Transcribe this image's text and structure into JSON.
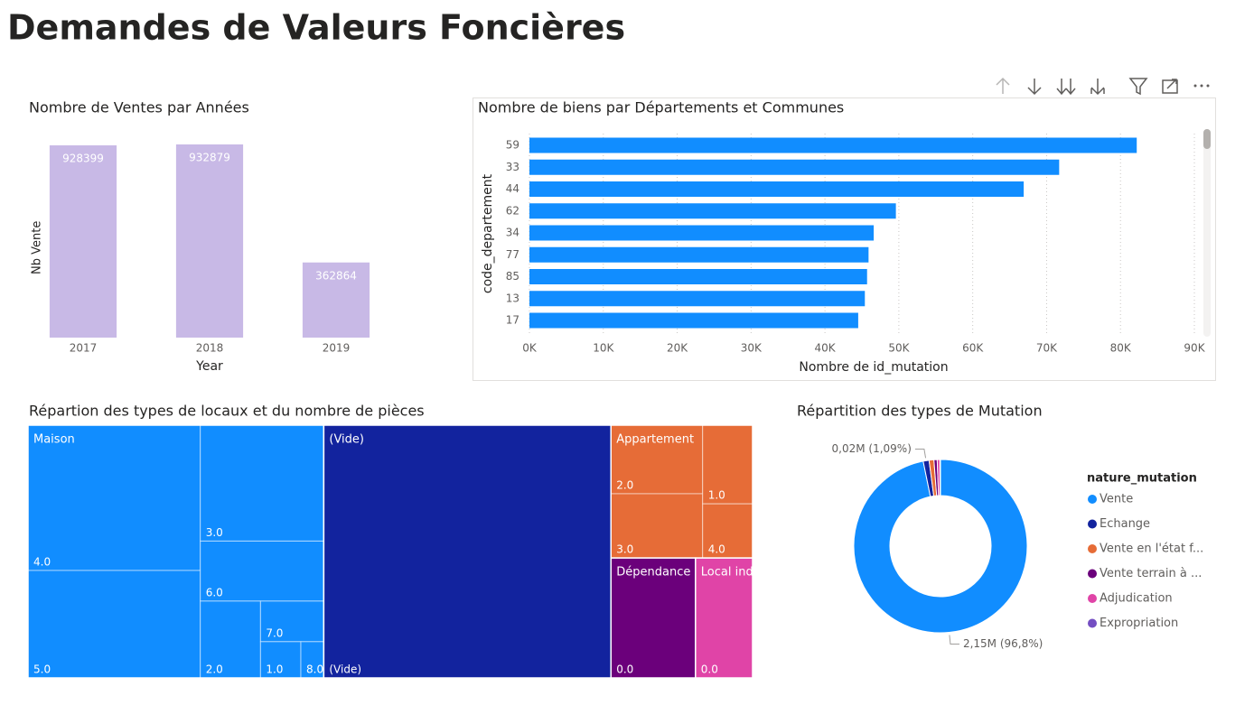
{
  "title": "Demandes de Valeurs Foncières",
  "chart_data": [
    {
      "type": "bar",
      "orientation": "vertical",
      "title": "Nombre de Ventes par Années",
      "categories": [
        "2017",
        "2018",
        "2019"
      ],
      "values": [
        928399,
        932879,
        362864
      ],
      "x_label": "Year",
      "y_label": "Nb Vente",
      "color": "#c8b9e6",
      "ylim": [
        0,
        1000000
      ],
      "data_labels": true
    },
    {
      "type": "bar",
      "orientation": "horizontal",
      "title": "Nombre de biens par Départements et Communes",
      "categories": [
        "59",
        "33",
        "44",
        "62",
        "34",
        "77",
        "85",
        "13",
        "17"
      ],
      "values": [
        82200,
        71700,
        66900,
        49600,
        46600,
        45900,
        45700,
        45400,
        44500
      ],
      "x_label": "Nombre de id_mutation",
      "y_label": "code_departement",
      "color": "#118dff",
      "xlim": [
        0,
        90000
      ],
      "xticks": [
        {
          "value": 0,
          "label": "0K"
        },
        {
          "value": 10000,
          "label": "10K"
        },
        {
          "value": 20000,
          "label": "20K"
        },
        {
          "value": 30000,
          "label": "30K"
        },
        {
          "value": 40000,
          "label": "40K"
        },
        {
          "value": 50000,
          "label": "50K"
        },
        {
          "value": 60000,
          "label": "60K"
        },
        {
          "value": 70000,
          "label": "70K"
        },
        {
          "value": 80000,
          "label": "80K"
        },
        {
          "value": 90000,
          "label": "90K"
        }
      ],
      "grid": true
    },
    {
      "type": "treemap",
      "title": "Répartion des types de locaux et du nombre de pièces",
      "series": [
        {
          "name": "Maison",
          "color": "#118dff",
          "categories": [
            "4.0",
            "5.0",
            "3.0",
            "6.0",
            "2.0",
            "7.0",
            "1.0",
            "8.0"
          ],
          "values": [
            304290,
            224910,
            173880,
            90100,
            56180,
            31200,
            17760,
            10080
          ]
        },
        {
          "name": "(Vide)",
          "color": "#12239e",
          "categories": [
            "(Vide)"
          ],
          "values": [
            882000
          ]
        },
        {
          "name": "Appartement",
          "color": "#e66c37",
          "categories": [
            "2.0",
            "3.0",
            "1.0",
            "4.0"
          ],
          "values": [
            76440,
            71540,
            47740,
            32860
          ]
        },
        {
          "name": "Dépendance",
          "color": "#6b007b",
          "categories": [
            "0.0"
          ],
          "values": [
            123200
          ]
        },
        {
          "name": "Local industriel. com...",
          "color": "#e044a7",
          "categories": [
            "0.0"
          ],
          "values": [
            83200
          ]
        }
      ]
    },
    {
      "type": "pie",
      "title": "Répartition des types de Mutation",
      "legend_title": "nature_mutation",
      "legend": "right",
      "categories": [
        "Vente",
        "Echange",
        "Vente en l'état f...",
        "Vente terrain à ...",
        "Adjudication",
        "Expropriation"
      ],
      "values": [
        96.8,
        1.09,
        0.9,
        0.6,
        0.5,
        0.11
      ],
      "value_labels": [
        "2,15M (96,8%)",
        "0,02M (1,09%)",
        null,
        null,
        null,
        null
      ],
      "colors": [
        "#118dff",
        "#12239e",
        "#e66c37",
        "#6b007b",
        "#e044a7",
        "#744ec2"
      ]
    }
  ]
}
